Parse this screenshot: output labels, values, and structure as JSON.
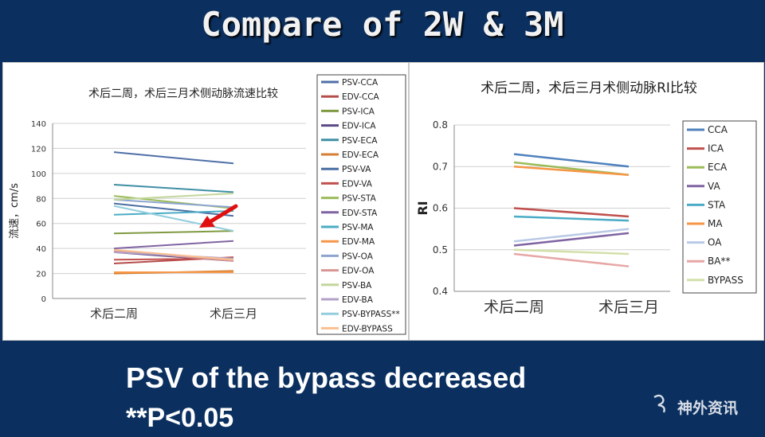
{
  "slide": {
    "title": "Compare of 2W & 3M",
    "line1": "PSV of the bypass decreased",
    "line2": "**P<0.05",
    "brand": "神外资讯",
    "brand_small": "神外资讯"
  },
  "chart_data": [
    {
      "type": "line",
      "title": "术后二周，术后三月术侧动脉流速比较",
      "ylabel": "流速，cm/s",
      "xlabel": "",
      "categories": [
        "术后二周",
        "术后三月"
      ],
      "ylim": [
        0,
        140
      ],
      "yticks": [
        0,
        20,
        40,
        60,
        80,
        100,
        120,
        140
      ],
      "grid": true,
      "legend": "right",
      "series": [
        {
          "name": "PSV-CCA",
          "values": [
            117,
            108
          ],
          "color": "#4f6fa8"
        },
        {
          "name": "EDV-CCA",
          "values": [
            28,
            33
          ],
          "color": "#b54d4a"
        },
        {
          "name": "PSV-ICA",
          "values": [
            52,
            54
          ],
          "color": "#7f9a42"
        },
        {
          "name": "EDV-ICA",
          "values": [
            37,
            30
          ],
          "color": "#5b4a85"
        },
        {
          "name": "PSV-ECA",
          "values": [
            91,
            85
          ],
          "color": "#3f8fa5"
        },
        {
          "name": "EDV-ECA",
          "values": [
            20,
            22
          ],
          "color": "#d57f33"
        },
        {
          "name": "PSV-VA",
          "values": [
            76,
            66
          ],
          "color": "#4a6fa3"
        },
        {
          "name": "EDV-VA",
          "values": [
            31,
            32
          ],
          "color": "#c0504d"
        },
        {
          "name": "PSV-STA",
          "values": [
            82,
            72
          ],
          "color": "#9bbb59"
        },
        {
          "name": "EDV-STA",
          "values": [
            40,
            46
          ],
          "color": "#8064a2"
        },
        {
          "name": "PSV-MA",
          "values": [
            67,
            70
          ],
          "color": "#4bacc6"
        },
        {
          "name": "EDV-MA",
          "values": [
            21,
            21
          ],
          "color": "#f79646"
        },
        {
          "name": "PSV-OA",
          "values": [
            79,
            73
          ],
          "color": "#8ea5cf"
        },
        {
          "name": "EDV-OA",
          "values": [
            38,
            30
          ],
          "color": "#d99694"
        },
        {
          "name": "PSV-BA",
          "values": [
            79,
            84
          ],
          "color": "#c3d69b"
        },
        {
          "name": "EDV-BA",
          "values": [
            37,
            32
          ],
          "color": "#b3a2c7"
        },
        {
          "name": "PSV-BYPASS**",
          "values": [
            74,
            54
          ],
          "color": "#93cddd"
        },
        {
          "name": "EDV-BYPASS",
          "values": [
            39,
            31
          ],
          "color": "#fac090"
        }
      ]
    },
    {
      "type": "line",
      "title": "术后二周，术后三月术侧动脉RI比较",
      "ylabel": "RI",
      "xlabel": "",
      "categories": [
        "术后二周",
        "术后三月"
      ],
      "ylim": [
        0.4,
        0.8
      ],
      "yticks": [
        0.4,
        0.5,
        0.6,
        0.7,
        0.8
      ],
      "grid": true,
      "legend": "right",
      "series": [
        {
          "name": "CCA",
          "values": [
            0.73,
            0.7
          ],
          "color": "#4f81bd"
        },
        {
          "name": "ICA",
          "values": [
            0.6,
            0.58
          ],
          "color": "#c0504d"
        },
        {
          "name": "ECA",
          "values": [
            0.71,
            0.68
          ],
          "color": "#9bbb59"
        },
        {
          "name": "VA",
          "values": [
            0.51,
            0.54
          ],
          "color": "#8064a2"
        },
        {
          "name": "STA",
          "values": [
            0.58,
            0.57
          ],
          "color": "#4bacc6"
        },
        {
          "name": "MA",
          "values": [
            0.7,
            0.68
          ],
          "color": "#f79646"
        },
        {
          "name": "OA",
          "values": [
            0.52,
            0.55
          ],
          "color": "#b9c9e5"
        },
        {
          "name": "BA**",
          "values": [
            0.49,
            0.46
          ],
          "color": "#e6a7a6"
        },
        {
          "name": "BYPASS",
          "values": [
            0.5,
            0.49
          ],
          "color": "#d2e0a9"
        }
      ]
    }
  ]
}
